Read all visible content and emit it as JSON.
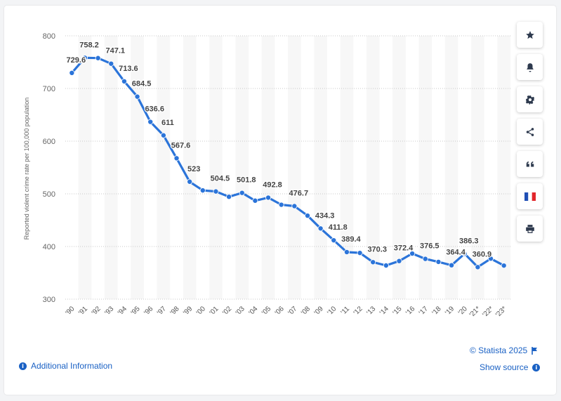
{
  "chart_data": {
    "type": "line",
    "ylabel": "Reported violent crime rate per 100,000 population",
    "ylim": [
      300,
      800
    ],
    "yticks": [
      300,
      400,
      500,
      600,
      700,
      800
    ],
    "categories": [
      "'90",
      "'91",
      "'92",
      "'93",
      "'94",
      "'95",
      "'96",
      "'97",
      "'98",
      "'99",
      "'00",
      "'01",
      "'02",
      "'03",
      "'04",
      "'05",
      "'06",
      "'07",
      "'08",
      "'09",
      "'10",
      "'11",
      "'12",
      "'13",
      "'14",
      "'15",
      "'16",
      "'17",
      "'18",
      "'19",
      "'20",
      "'21*",
      "'22*",
      "'23*"
    ],
    "values": [
      729.6,
      758.2,
      757.7,
      747.1,
      713.6,
      684.5,
      636.6,
      611,
      567.6,
      523,
      506.5,
      504.5,
      494.4,
      501.8,
      487,
      492.8,
      479.3,
      476.7,
      458.6,
      434.3,
      411.8,
      389.4,
      387.8,
      370.3,
      364,
      372.4,
      386.6,
      376.5,
      370.8,
      364.4,
      386.3,
      360.9,
      377,
      363.8
    ],
    "data_labels": [
      {
        "i": 0,
        "text": "729.6"
      },
      {
        "i": 1,
        "text": "758.2"
      },
      {
        "i": 3,
        "text": "747.1"
      },
      {
        "i": 4,
        "text": "713.6"
      },
      {
        "i": 5,
        "text": "684.5"
      },
      {
        "i": 6,
        "text": "636.6"
      },
      {
        "i": 7,
        "text": "611"
      },
      {
        "i": 8,
        "text": "567.6"
      },
      {
        "i": 9,
        "text": "523"
      },
      {
        "i": 11,
        "text": "504.5"
      },
      {
        "i": 13,
        "text": "501.8"
      },
      {
        "i": 15,
        "text": "492.8"
      },
      {
        "i": 17,
        "text": "476.7"
      },
      {
        "i": 19,
        "text": "434.3"
      },
      {
        "i": 20,
        "text": "411.8"
      },
      {
        "i": 21,
        "text": "389.4"
      },
      {
        "i": 23,
        "text": "370.3"
      },
      {
        "i": 25,
        "text": "372.4"
      },
      {
        "i": 27,
        "text": "376.5"
      },
      {
        "i": 29,
        "text": "364.4"
      },
      {
        "i": 30,
        "text": "386.3"
      },
      {
        "i": 31,
        "text": "360.9"
      }
    ],
    "grid": true,
    "line_color": "#2b74d9"
  },
  "sidebar": {
    "buttons": [
      {
        "icon": "star-icon",
        "name": "favorite-button"
      },
      {
        "icon": "bell-icon",
        "name": "notification-button"
      },
      {
        "icon": "gear-icon",
        "name": "settings-button"
      },
      {
        "icon": "share-icon",
        "name": "share-button"
      },
      {
        "icon": "quote-icon",
        "name": "cite-button"
      },
      {
        "icon": "french-flag-icon",
        "name": "language-button"
      },
      {
        "icon": "print-icon",
        "name": "print-button"
      }
    ]
  },
  "footer": {
    "copyright": "© Statista 2025",
    "additional_info": "Additional Information",
    "show_source": "Show source"
  },
  "colors": {
    "accent": "#1a61c4",
    "line": "#2b74d9"
  }
}
